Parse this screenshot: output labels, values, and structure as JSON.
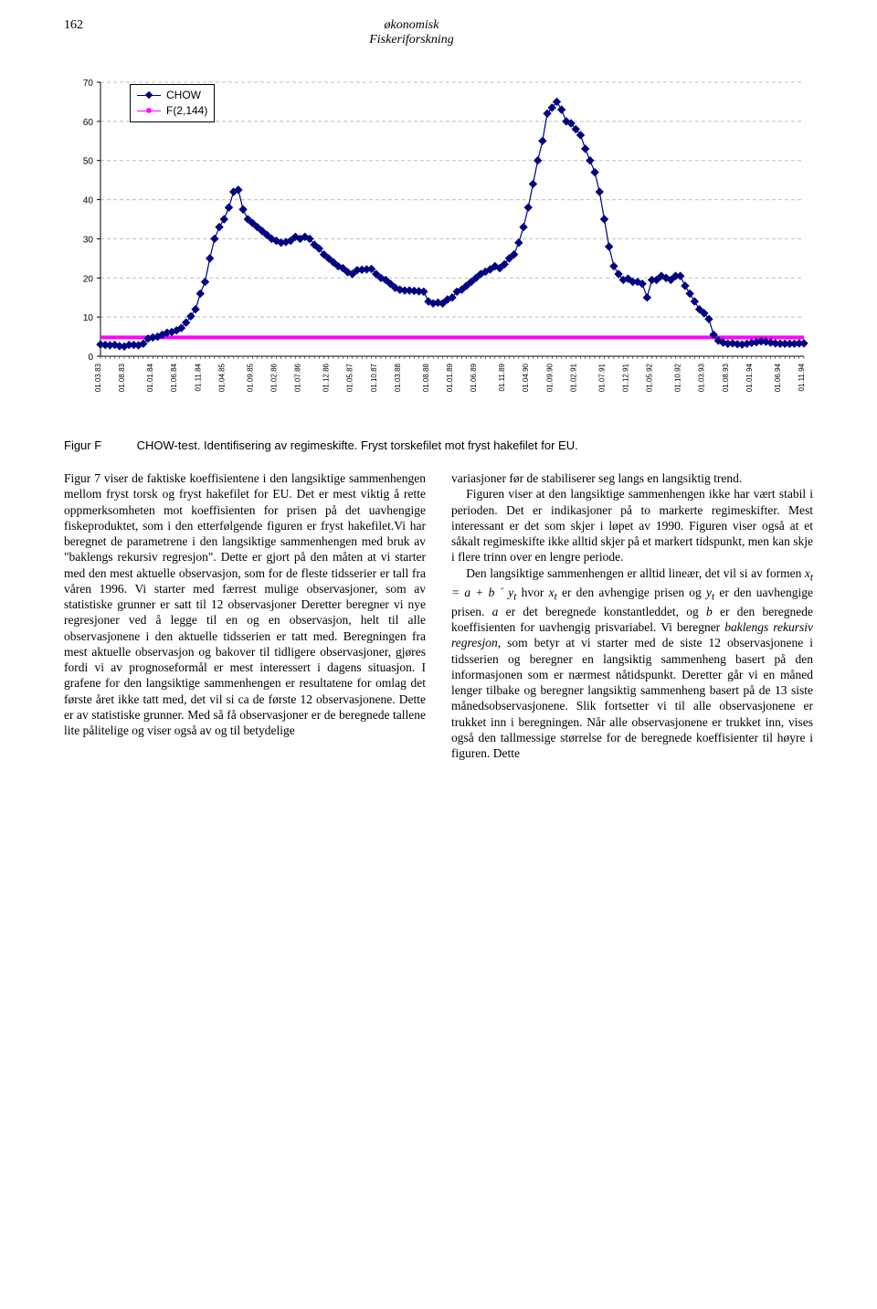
{
  "header": {
    "page_number": "162",
    "journal_line1": "økonomisk",
    "journal_line2": "Fiskeriforskning"
  },
  "chart": {
    "type": "line",
    "background_color": "#ffffff",
    "grid_color": "#c0c0c0",
    "axis_color": "#000000",
    "ylim": [
      0,
      70
    ],
    "ytick_step": 10,
    "yticks": [
      0,
      10,
      20,
      30,
      40,
      50,
      60,
      70
    ],
    "xtick_fontsize": 8,
    "ytick_fontsize": 10,
    "legend": {
      "items": [
        {
          "label": "CHOW",
          "color": "#000080",
          "marker": "diamond"
        },
        {
          "label": "F(2,144)",
          "color": "#ff00ff",
          "marker": "square"
        }
      ]
    },
    "series_f_color": "#ff00ff",
    "series_f_value": 4.8,
    "series_chow_color": "#000080",
    "series_chow_marker_size": 4,
    "x_labels": [
      "01.03.83",
      "01.08.83",
      "01.01.84",
      "01.06.84",
      "01.11.84",
      "01.04.85",
      "01.09.85",
      "01.02.86",
      "01.07.86",
      "01.12.86",
      "01.05.87",
      "01.10.87",
      "01.03.88",
      "01.08.88",
      "01.01.89",
      "01.06.89",
      "01.11.89",
      "01.04.90",
      "01.09.90",
      "01.02.91",
      "01.07.91",
      "01.12.91",
      "01.05.92",
      "01.10.92",
      "01.03.93",
      "01.08.93",
      "01.01.94",
      "01.06.94",
      "01.11.94"
    ],
    "chow_values": [
      3.0,
      2.9,
      2.8,
      2.9,
      2.6,
      2.5,
      2.9,
      2.9,
      2.8,
      3.2,
      4.5,
      4.8,
      5.0,
      5.5,
      6.0,
      6.2,
      6.6,
      7.2,
      8.6,
      10.2,
      12.0,
      16.0,
      19.0,
      25.0,
      30.0,
      33.0,
      35.0,
      38.0,
      42.0,
      42.5,
      37.5,
      35.0,
      34.0,
      33.0,
      32.0,
      31.0,
      30.0,
      29.5,
      29.0,
      29.2,
      29.5,
      30.5,
      30.0,
      30.5,
      30.0,
      28.5,
      27.5,
      26.0,
      25.0,
      24.0,
      23.0,
      22.5,
      21.5,
      21.0,
      22.0,
      22.1,
      22.2,
      22.3,
      21.0,
      20.0,
      19.5,
      18.5,
      17.5,
      17.0,
      16.8,
      16.8,
      16.7,
      16.6,
      16.5,
      14.0,
      13.5,
      13.7,
      13.5,
      14.5,
      15.0,
      16.5,
      17.0,
      18.0,
      19.0,
      20.0,
      21.0,
      21.6,
      22.2,
      23.0,
      22.5,
      23.5,
      25.0,
      26.0,
      29.0,
      33.0,
      38.0,
      44.0,
      50.0,
      55.0,
      62.0,
      63.5,
      65.0,
      63.0,
      60.0,
      59.5,
      58.0,
      56.5,
      53.0,
      50.0,
      47.0,
      42.0,
      35.0,
      28.0,
      23.0,
      21.0,
      19.5,
      19.8,
      19.0,
      19.0,
      18.5,
      15.0,
      19.5,
      19.5,
      20.5,
      20.0,
      19.5,
      20.5,
      20.5,
      18.0,
      16.0,
      14.0,
      12.0,
      11.0,
      9.5,
      5.5,
      4.0,
      3.5,
      3.2,
      3.3,
      3.1,
      3.0,
      3.2,
      3.4,
      3.6,
      3.8,
      3.7,
      3.5,
      3.3,
      3.2,
      3.2,
      3.2,
      3.2,
      3.3,
      3.3
    ]
  },
  "figure_caption": {
    "label": "Figur F",
    "text": "CHOW-test. Identifisering av regimeskifte. Fryst torskefilet mot fryst hakefilet for EU."
  },
  "body": {
    "left": [
      "Figur 7 viser de faktiske koeffisientene i den langsiktige sammenhengen mellom fryst torsk og fryst hakefilet for EU. Det er mest viktig å rette oppmerksomheten mot koeffisienten for prisen på det uavhengige fiskeproduktet, som i den etterfølgende figuren er fryst hakefilet.Vi har beregnet de parametrene i den langsiktige sammenhengen med bruk av \"baklengs rekursiv regresjon\". Dette er gjort på den måten at vi starter med den mest aktuelle observasjon, som for de fleste tidsserier er tall fra våren 1996. Vi starter med færrest mulige observasjoner, som av statistiske grunner er satt til 12 observasjoner Deretter beregner vi nye regresjoner ved å legge til en og en observasjon, helt til alle observasjonene i den aktuelle tidsserien er tatt med. Beregningen fra mest aktuelle observasjon og bakover til tidligere observasjoner, gjøres fordi vi av prognoseformål er mest interessert i dagens situasjon. I grafene for den langsiktige sammenhengen er resultatene for omlag det første året ikke tatt med, det vil si ca de første 12 observasjonene. Dette er av statistiske grunner. Med så få observasjoner er de beregnede tallene lite pålitelige og viser også av og til betydelige"
    ],
    "right": [
      "variasjoner før de stabiliserer seg langs en langsiktig trend.",
      "Figuren viser at den langsiktige sammenhengen ikke har vært stabil i perioden. Det er indikasjoner på to markerte regimeskifter. Mest interessant er det som skjer i løpet av 1990. Figuren viser også at et såkalt regimeskifte ikke alltid skjer på et markert tidspunkt, men kan skje i flere trinn over en lengre periode.",
      "Den langsiktige sammenhengen er alltid lineær, det vil si av formen <i>x<sub>t</sub> = a + b ´ y<sub>t</sub></i> hvor <i>x<sub>t</sub></i> er den avhengige prisen og <i>y<sub>t</sub></i> er den uavhengige prisen. <i>a</i> er det beregnede konstantleddet, og <i>b</i> er den beregnede koeffisienten for uavhengig prisvariabel. Vi beregner <i>baklengs rekursiv regresjon</i>, som betyr at vi starter med de siste 12 observasjonene i tidsserien og beregner en langsiktig sammenheng basert på den informasjonen som er nærmest nåtidspunkt. Deretter går vi en måned lenger tilbake og beregner langsiktig sammenheng basert på de 13 siste månedsobservasjonene. Slik fortsetter vi til alle observasjonene er trukket inn i beregningen. Når alle observasjonene er trukket inn, vises også den tallmessige størrelse for de beregnede koeffisienter til høyre i figuren. Dette"
    ]
  }
}
